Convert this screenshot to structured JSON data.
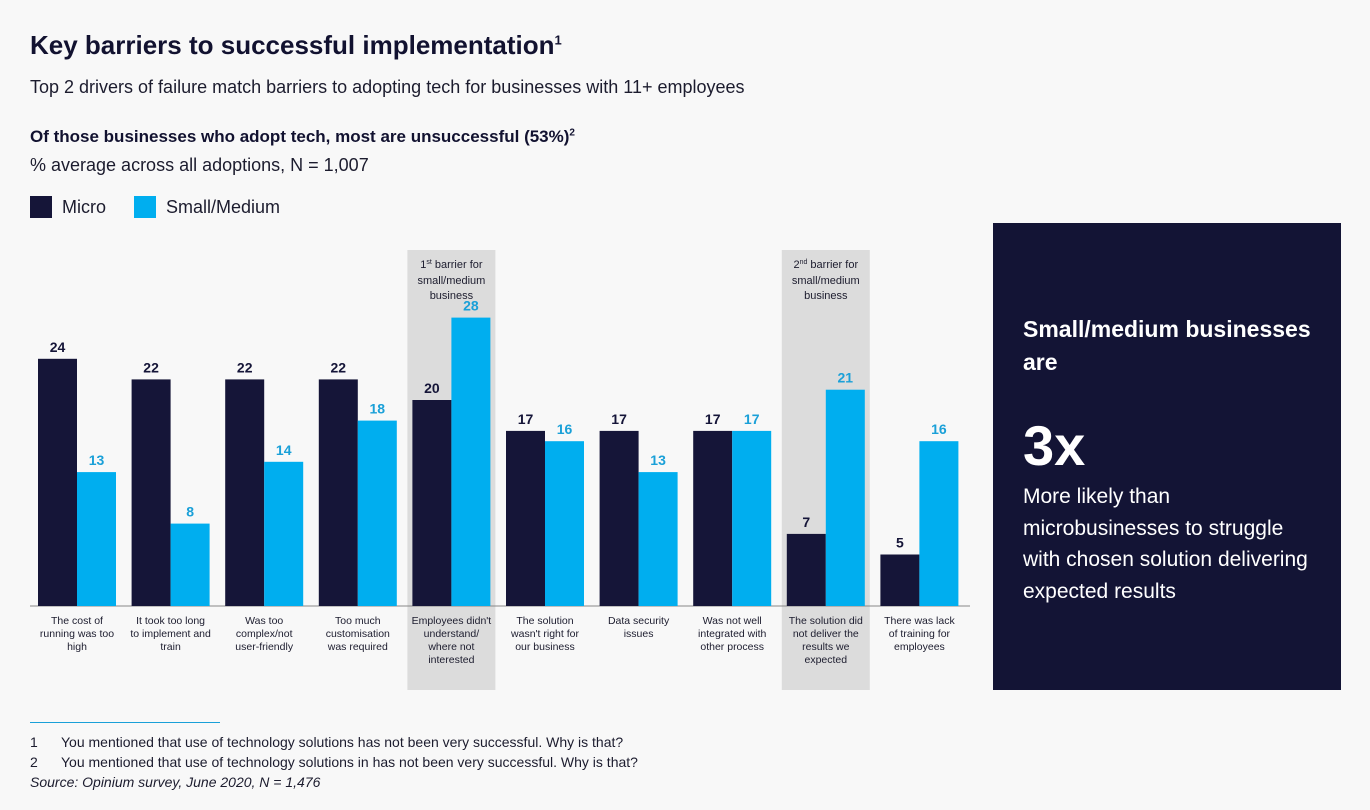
{
  "header": {
    "title": "Key barriers to successful implementation",
    "title_sup": "1",
    "subtitle": "Top 2 drivers of failure match barriers to adopting tech for businesses with 11+ employees"
  },
  "chart_heading": {
    "text": "Of those businesses who adopt tech, most are unsuccessful (53%)",
    "sup": "2",
    "subheading": "% average across all adoptions, N = 1,007"
  },
  "legend": {
    "micro": "Micro",
    "small_medium": "Small/Medium"
  },
  "colors": {
    "micro": "#151538",
    "small_medium": "#00aeef",
    "highlight": "#dcdcdc",
    "callout_bg": "#131435"
  },
  "chart_data": {
    "type": "bar",
    "categories": [
      "The cost of running was too high",
      "It took too long to implement and train",
      "Was too complex/not user-friendly",
      "Too much customisation was required",
      "Employees didn't understand/ where not interested",
      "The solution wasn't right for our business",
      "Data security issues",
      "Was not well integrated with other process",
      "The solution did not deliver the results we expected",
      "There was lack of training for employees"
    ],
    "series": [
      {
        "name": "Micro",
        "values": [
          24,
          22,
          22,
          22,
          20,
          17,
          17,
          17,
          7,
          5
        ]
      },
      {
        "name": "Small/Medium",
        "values": [
          13,
          8,
          14,
          18,
          28,
          16,
          13,
          17,
          21,
          16
        ]
      }
    ],
    "ylim": [
      0,
      30
    ],
    "grid": false,
    "legend_placement": "top-left",
    "highlights": [
      {
        "category_index": 4,
        "ordinal": "1",
        "ordinal_suffix": "st",
        "text": "barrier for small/medium business"
      },
      {
        "category_index": 8,
        "ordinal": "2",
        "ordinal_suffix": "nd",
        "text": "barrier for small/medium business"
      }
    ]
  },
  "callout": {
    "heading": "Small/medium businesses are",
    "stat": "3x",
    "text": "More likely than microbusinesses to struggle with chosen solution delivering expected results"
  },
  "footnotes": [
    {
      "num": "1",
      "text": "You mentioned that use of technology solutions has not been very successful. Why is that?"
    },
    {
      "num": "2",
      "text": "You mentioned that use of technology solutions in  has not been very successful. Why is that?"
    }
  ],
  "source": "Source: Opinium survey, June 2020, N = 1,476"
}
